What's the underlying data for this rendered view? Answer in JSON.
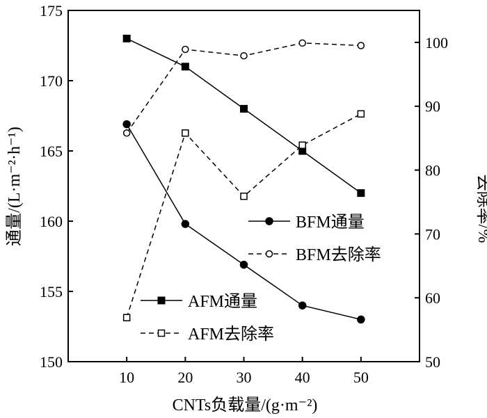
{
  "chart_data": {
    "type": "line",
    "x": [
      10,
      20,
      30,
      40,
      50
    ],
    "xlabel": "CNTs负载量/(g·m⁻²)",
    "ylabel_left": "通量/(L·m⁻²·h⁻¹)",
    "ylabel_right": "去除率/%",
    "xlim": [
      0,
      60
    ],
    "ylim_left": [
      150,
      175
    ],
    "ylim_right": [
      50,
      105
    ],
    "xticks": [
      "10",
      "20",
      "30",
      "40",
      "50"
    ],
    "yticks_left": [
      "150",
      "155",
      "160",
      "165",
      "170",
      "175"
    ],
    "yticks_right": [
      "50",
      "60",
      "70",
      "80",
      "90",
      "100"
    ],
    "grid": false,
    "series": [
      {
        "name": "BFM通量",
        "axis": "left",
        "marker": "filled-circle",
        "line": "solid",
        "values": [
          166.9,
          159.8,
          156.9,
          154.0,
          153.0
        ]
      },
      {
        "name": "BFM去除率",
        "axis": "right",
        "marker": "open-circle",
        "line": "dashed",
        "values": [
          85.8,
          98.9,
          97.9,
          99.9,
          99.5
        ]
      },
      {
        "name": "AFM通量",
        "axis": "left",
        "marker": "filled-square",
        "line": "solid",
        "values": [
          173.0,
          171.0,
          168.0,
          165.0,
          162.0
        ]
      },
      {
        "name": "AFM去除率",
        "axis": "right",
        "marker": "open-square",
        "line": "dashed",
        "values": [
          56.9,
          85.8,
          75.9,
          83.9,
          88.8
        ]
      }
    ],
    "legends": [
      {
        "placement": "center-right",
        "entries": [
          0,
          1
        ]
      },
      {
        "placement": "bottom-left",
        "entries": [
          2,
          3
        ]
      }
    ]
  }
}
